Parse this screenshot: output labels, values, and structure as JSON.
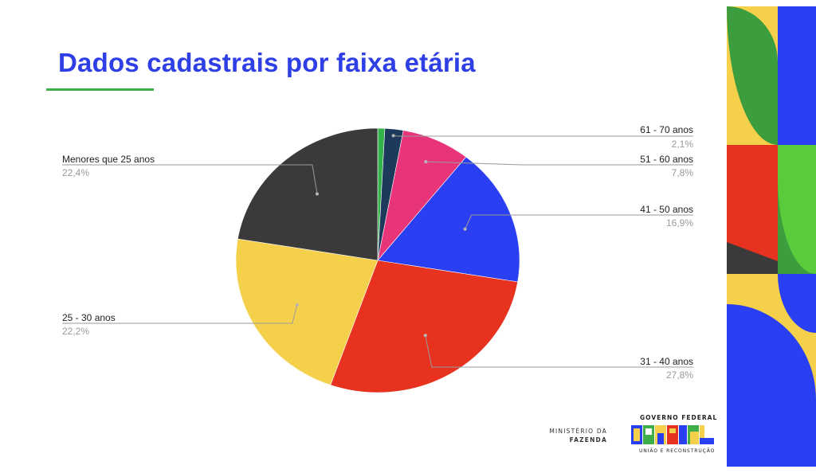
{
  "slide": {
    "title": "Dados cadastrais por faixa etária"
  },
  "chart_data": {
    "type": "pie",
    "title": "",
    "slices": [
      {
        "label": "Menores que 25 anos",
        "value": 22.4,
        "display": "22,4%",
        "color": "#3a3a3a"
      },
      {
        "label": "25 - 30 anos",
        "value": 22.2,
        "display": "22,2%",
        "color": "#f5d04a"
      },
      {
        "label": "31 - 40 anos",
        "value": 27.8,
        "display": "27,8%",
        "color": "#e6321f"
      },
      {
        "label": "41 - 50 anos",
        "value": 16.9,
        "display": "16,9%",
        "color": "#2a3ff2"
      },
      {
        "label": "51 - 60 anos",
        "value": 7.8,
        "display": "7,8%",
        "color": "#e8357a"
      },
      {
        "label": "61 - 70 anos",
        "value": 2.1,
        "display": "2,1%",
        "color": "#1d3a5c"
      },
      {
        "label": "",
        "value": 0.8,
        "display": "",
        "color": "#35b34a"
      }
    ],
    "start_angle": "12 o'clock, clockwise from 61 - 70 anos"
  },
  "footer": {
    "ministry_line1": "MINISTÉRIO DA",
    "ministry_line2": "FAZENDA",
    "gov_top": "GOVERNO FEDERAL",
    "gov_word": "BRASIL",
    "gov_bottom": "UNIÃO E RECONSTRUÇÃO"
  },
  "colors": {
    "title": "#2f3fe6",
    "underline": "#3fae49",
    "label_text": "#222222",
    "percent_text": "#9a9a9a",
    "leader_line": "#9a9a9a"
  }
}
